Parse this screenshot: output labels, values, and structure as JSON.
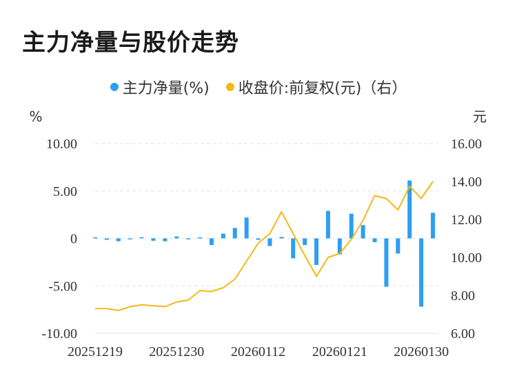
{
  "title": "主力净量与股价走势",
  "legend": [
    {
      "label": "主力净量(%)",
      "color": "#2c9ff0"
    },
    {
      "label": "收盘价:前复权(元)（右）",
      "color": "#f5b815"
    }
  ],
  "chart_data": {
    "type": "bar+line",
    "left_unit": "%",
    "right_unit": "元",
    "left_ticks": [
      "10.00",
      "5.00",
      "0",
      "-5.00",
      "-10.00"
    ],
    "right_ticks": [
      "16.00",
      "14.00",
      "12.00",
      "10.00",
      "8.00",
      "6.00"
    ],
    "ylim_left": [
      -10,
      10
    ],
    "ylim_right": [
      6,
      16
    ],
    "x_tick_labels": [
      "20251219",
      "20251230",
      "20260112",
      "20260121",
      "20260130"
    ],
    "x_tick_indices": [
      0,
      7,
      14,
      21,
      28
    ],
    "series": [
      {
        "name": "主力净量(%)",
        "type": "bar",
        "values": [
          0.05,
          -0.15,
          -0.3,
          -0.1,
          0.1,
          -0.25,
          -0.3,
          0.2,
          -0.05,
          0.05,
          -0.7,
          0.5,
          1.1,
          2.2,
          -0.15,
          -0.8,
          0.15,
          -2.1,
          -0.7,
          -2.8,
          2.9,
          -1.7,
          2.6,
          1.4,
          -0.4,
          -5.1,
          -1.6,
          6.1,
          -7.2,
          2.7
        ]
      },
      {
        "name": "收盘价:前复权(元)（右）",
        "type": "line",
        "values": [
          7.3,
          7.3,
          7.2,
          7.4,
          7.5,
          7.45,
          7.4,
          7.65,
          7.75,
          8.25,
          8.2,
          8.4,
          8.85,
          9.8,
          10.75,
          11.25,
          12.4,
          11.25,
          10.1,
          9.0,
          10.0,
          10.2,
          10.95,
          11.95,
          13.25,
          13.1,
          12.5,
          13.75,
          13.1,
          14.0
        ]
      }
    ],
    "grid": true
  }
}
